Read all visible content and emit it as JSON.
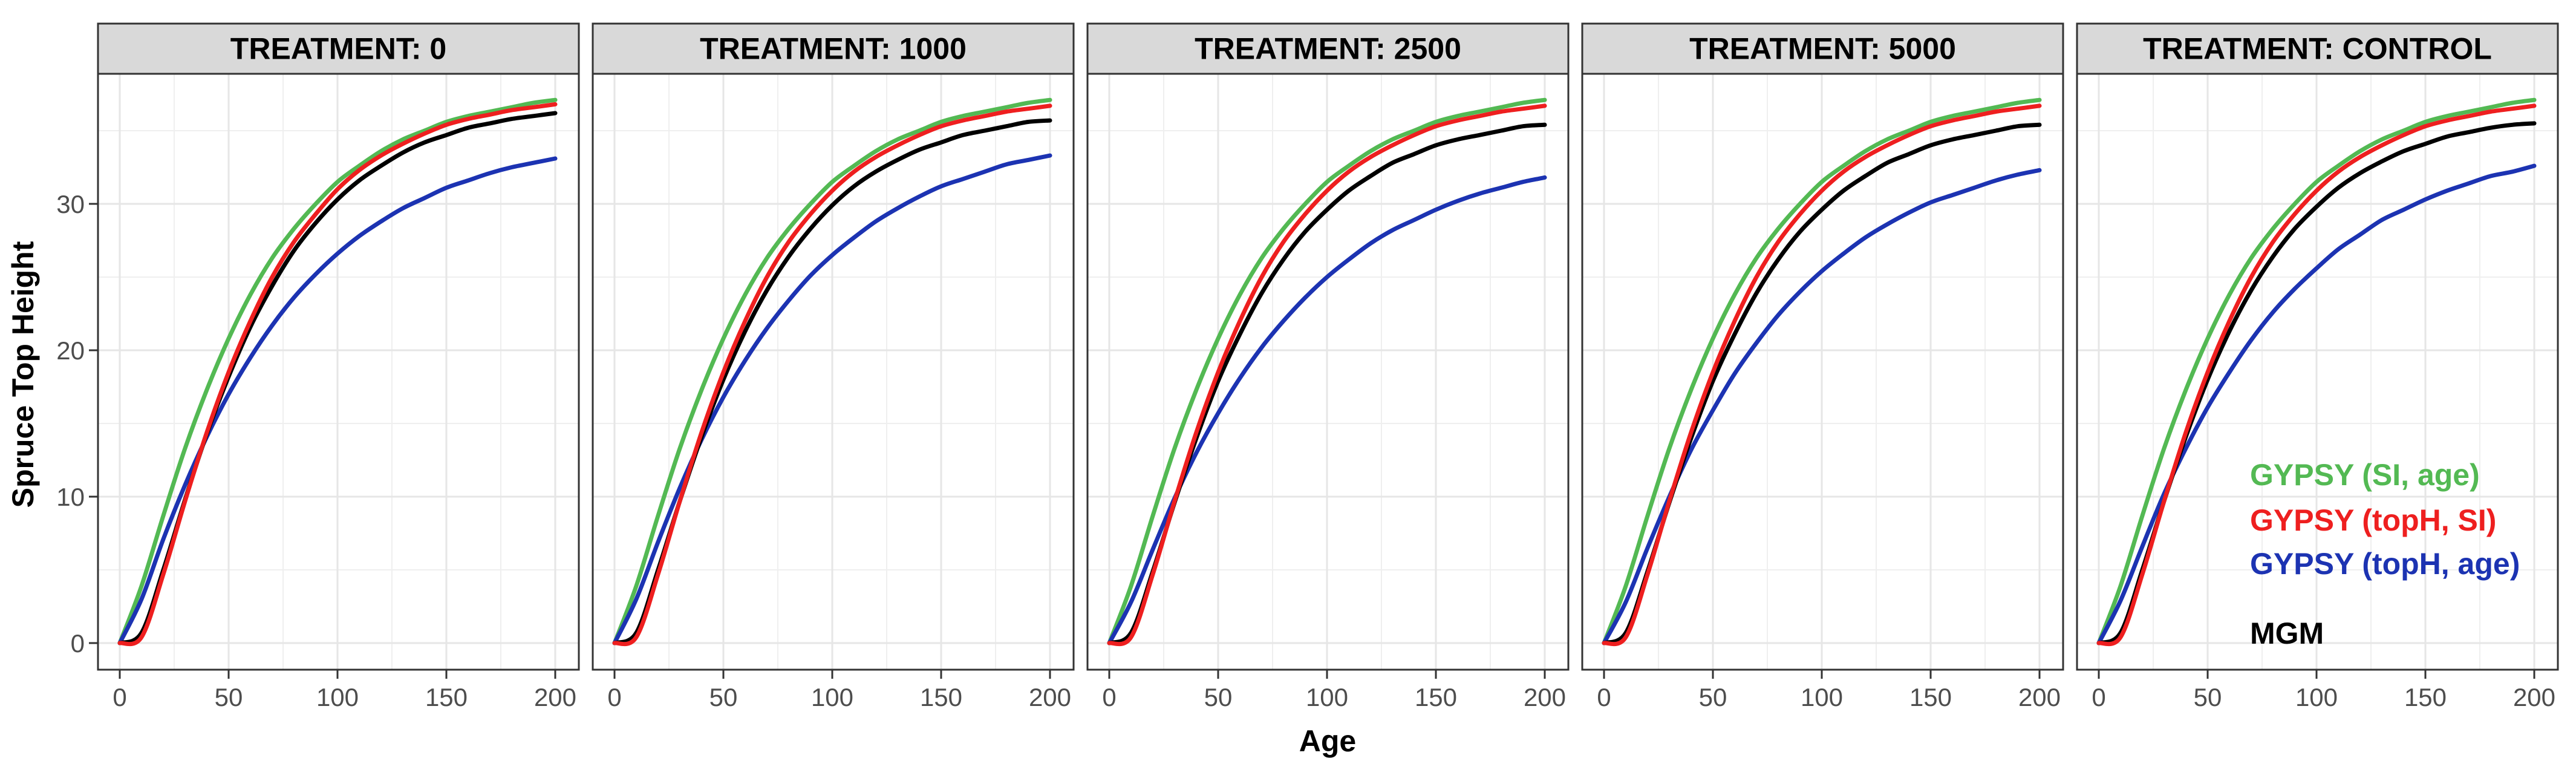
{
  "figure": {
    "y_axis_title": "Spruce Top Height",
    "x_axis_title": "Age"
  },
  "chart_data": {
    "type": "line",
    "facet_variable": "TREATMENT",
    "title": "",
    "xlabel": "Age",
    "ylabel": "Spruce Top Height",
    "x_ticks": [
      0,
      50,
      100,
      150,
      200
    ],
    "y_ticks": [
      0,
      10,
      20,
      30
    ],
    "x_minor_ticks": [
      25,
      75,
      125,
      175
    ],
    "y_minor_ticks": [
      5,
      15,
      25,
      35
    ],
    "xlim": [
      0,
      200
    ],
    "ylim": [
      -1.8,
      38.9
    ],
    "grid": "on",
    "ages": [
      0,
      10,
      20,
      30,
      40,
      50,
      60,
      70,
      80,
      90,
      100,
      110,
      120,
      130,
      140,
      150,
      160,
      170,
      180,
      190,
      200
    ],
    "series_names": [
      "GYPSY (SI, age)",
      "GYPSY (topH, SI)",
      "GYPSY (topH, age)",
      "MGM"
    ],
    "colors": {
      "gypsy_si_age": "#53b953",
      "gypsy_toph_si": "#ee1f1f",
      "gypsy_toph_age": "#1c33b2",
      "mgm": "#000000",
      "strip_bg": "#d9d9d9",
      "strip_text": "#000000",
      "panel_border": "#333333",
      "grid_major": "#e6e6e6",
      "grid_minor": "#efefef",
      "tick_label": "#4d4d4d",
      "tick_mark": "#333333"
    },
    "panels": [
      {
        "title": "TREATMENT: 0",
        "series": {
          "gypsy_si_age": [
            0,
            3.9,
            8.7,
            13.3,
            17.3,
            20.8,
            23.8,
            26.3,
            28.3,
            30.0,
            31.5,
            32.6,
            33.6,
            34.4,
            35.0,
            35.6,
            36.0,
            36.3,
            36.6,
            36.9,
            37.1
          ],
          "gypsy_toph_si": [
            0,
            0.4,
            4.7,
            9.7,
            14.4,
            18.5,
            22.0,
            25.0,
            27.4,
            29.3,
            31.0,
            32.3,
            33.3,
            34.1,
            34.8,
            35.4,
            35.8,
            36.1,
            36.4,
            36.6,
            36.8
          ],
          "gypsy_toph_age": [
            0,
            3.0,
            7.1,
            10.8,
            14.1,
            17.0,
            19.5,
            21.7,
            23.6,
            25.2,
            26.6,
            27.8,
            28.8,
            29.7,
            30.4,
            31.1,
            31.6,
            32.1,
            32.5,
            32.8,
            33.1
          ],
          "mgm": [
            0,
            0.7,
            5.0,
            9.8,
            14.3,
            18.2,
            21.6,
            24.4,
            26.8,
            28.7,
            30.3,
            31.6,
            32.6,
            33.5,
            34.2,
            34.7,
            35.2,
            35.5,
            35.8,
            36.0,
            36.2
          ]
        }
      },
      {
        "title": "TREATMENT: 1000",
        "series": {
          "gypsy_si_age": [
            0,
            3.9,
            8.7,
            13.3,
            17.3,
            20.8,
            23.8,
            26.3,
            28.3,
            30.0,
            31.5,
            32.6,
            33.6,
            34.4,
            35.0,
            35.6,
            36.0,
            36.3,
            36.6,
            36.9,
            37.1
          ],
          "gypsy_toph_si": [
            0,
            0.4,
            4.7,
            9.7,
            14.4,
            18.5,
            22.0,
            25.0,
            27.4,
            29.3,
            30.9,
            32.2,
            33.2,
            34.0,
            34.7,
            35.3,
            35.7,
            36.0,
            36.3,
            36.5,
            36.7
          ],
          "gypsy_toph_age": [
            0,
            3.0,
            6.9,
            10.6,
            13.9,
            16.8,
            19.3,
            21.5,
            23.4,
            25.1,
            26.5,
            27.7,
            28.8,
            29.7,
            30.5,
            31.2,
            31.7,
            32.2,
            32.7,
            33.0,
            33.3
          ],
          "mgm": [
            0,
            0.7,
            5.0,
            9.7,
            14.1,
            18.0,
            21.3,
            24.1,
            26.4,
            28.3,
            29.9,
            31.2,
            32.2,
            33.0,
            33.7,
            34.2,
            34.7,
            35.0,
            35.3,
            35.6,
            35.7
          ]
        }
      },
      {
        "title": "TREATMENT: 2500",
        "series": {
          "gypsy_si_age": [
            0,
            3.9,
            8.7,
            13.3,
            17.3,
            20.8,
            23.8,
            26.3,
            28.3,
            30.0,
            31.5,
            32.6,
            33.6,
            34.4,
            35.0,
            35.6,
            36.0,
            36.3,
            36.6,
            36.9,
            37.1
          ],
          "gypsy_toph_si": [
            0,
            0.4,
            4.7,
            9.7,
            14.4,
            18.5,
            22.0,
            25.0,
            27.4,
            29.3,
            30.9,
            32.2,
            33.2,
            34.0,
            34.7,
            35.3,
            35.7,
            36.0,
            36.3,
            36.5,
            36.7
          ],
          "gypsy_toph_age": [
            0,
            2.8,
            6.4,
            9.9,
            13.0,
            15.7,
            18.1,
            20.2,
            22.0,
            23.6,
            25.0,
            26.2,
            27.3,
            28.2,
            28.9,
            29.6,
            30.2,
            30.7,
            31.1,
            31.5,
            31.8
          ],
          "mgm": [
            0,
            0.7,
            4.9,
            9.6,
            14.0,
            17.9,
            21.1,
            23.9,
            26.2,
            28.1,
            29.6,
            30.9,
            31.9,
            32.8,
            33.4,
            34.0,
            34.4,
            34.7,
            35.0,
            35.3,
            35.4
          ]
        }
      },
      {
        "title": "TREATMENT: 5000",
        "series": {
          "gypsy_si_age": [
            0,
            3.9,
            8.7,
            13.3,
            17.3,
            20.8,
            23.8,
            26.3,
            28.3,
            30.0,
            31.5,
            32.6,
            33.6,
            34.4,
            35.0,
            35.6,
            36.0,
            36.3,
            36.6,
            36.9,
            37.1
          ],
          "gypsy_toph_si": [
            0,
            0.4,
            4.7,
            9.7,
            14.4,
            18.5,
            22.0,
            25.0,
            27.4,
            29.3,
            30.9,
            32.2,
            33.2,
            34.0,
            34.7,
            35.3,
            35.7,
            36.0,
            36.3,
            36.5,
            36.7
          ],
          "gypsy_toph_age": [
            0,
            2.8,
            6.5,
            10.0,
            13.2,
            15.9,
            18.4,
            20.5,
            22.4,
            24.0,
            25.4,
            26.6,
            27.7,
            28.6,
            29.4,
            30.1,
            30.6,
            31.1,
            31.6,
            32.0,
            32.3
          ],
          "mgm": [
            0,
            0.7,
            4.9,
            9.6,
            14.0,
            17.9,
            21.1,
            23.9,
            26.2,
            28.1,
            29.6,
            30.9,
            31.9,
            32.8,
            33.4,
            34.0,
            34.4,
            34.7,
            35.0,
            35.3,
            35.4
          ]
        }
      },
      {
        "title": "TREATMENT: CONTROL",
        "series": {
          "gypsy_si_age": [
            0,
            3.9,
            8.7,
            13.3,
            17.3,
            20.8,
            23.8,
            26.3,
            28.3,
            30.0,
            31.5,
            32.6,
            33.6,
            34.4,
            35.0,
            35.6,
            36.0,
            36.3,
            36.6,
            36.9,
            37.1
          ],
          "gypsy_toph_si": [
            0,
            0.4,
            4.7,
            9.7,
            14.4,
            18.5,
            22.0,
            25.0,
            27.4,
            29.3,
            30.9,
            32.2,
            33.2,
            34.0,
            34.7,
            35.3,
            35.7,
            36.0,
            36.3,
            36.5,
            36.7
          ],
          "gypsy_toph_age": [
            0,
            2.9,
            6.6,
            10.2,
            13.3,
            16.1,
            18.5,
            20.7,
            22.6,
            24.2,
            25.6,
            26.9,
            27.9,
            28.9,
            29.6,
            30.3,
            30.9,
            31.4,
            31.9,
            32.2,
            32.6
          ],
          "mgm": [
            0,
            0.7,
            5.0,
            9.7,
            14.1,
            18.0,
            21.3,
            24.1,
            26.4,
            28.3,
            29.8,
            31.1,
            32.1,
            32.9,
            33.6,
            34.1,
            34.6,
            34.9,
            35.2,
            35.4,
            35.5
          ]
        }
      }
    ],
    "legend": {
      "position": "inside-last-panel",
      "entries": [
        {
          "key": "gypsy_si_age",
          "label": "GYPSY (SI, age)",
          "color": "#53b953"
        },
        {
          "key": "gypsy_toph_si",
          "label": "GYPSY (topH, SI)",
          "color": "#ee1f1f"
        },
        {
          "key": "gypsy_toph_age",
          "label": "GYPSY (topH, age)",
          "color": "#1c33b2"
        },
        {
          "key": "mgm",
          "label": "MGM",
          "color": "#000000"
        }
      ]
    }
  }
}
